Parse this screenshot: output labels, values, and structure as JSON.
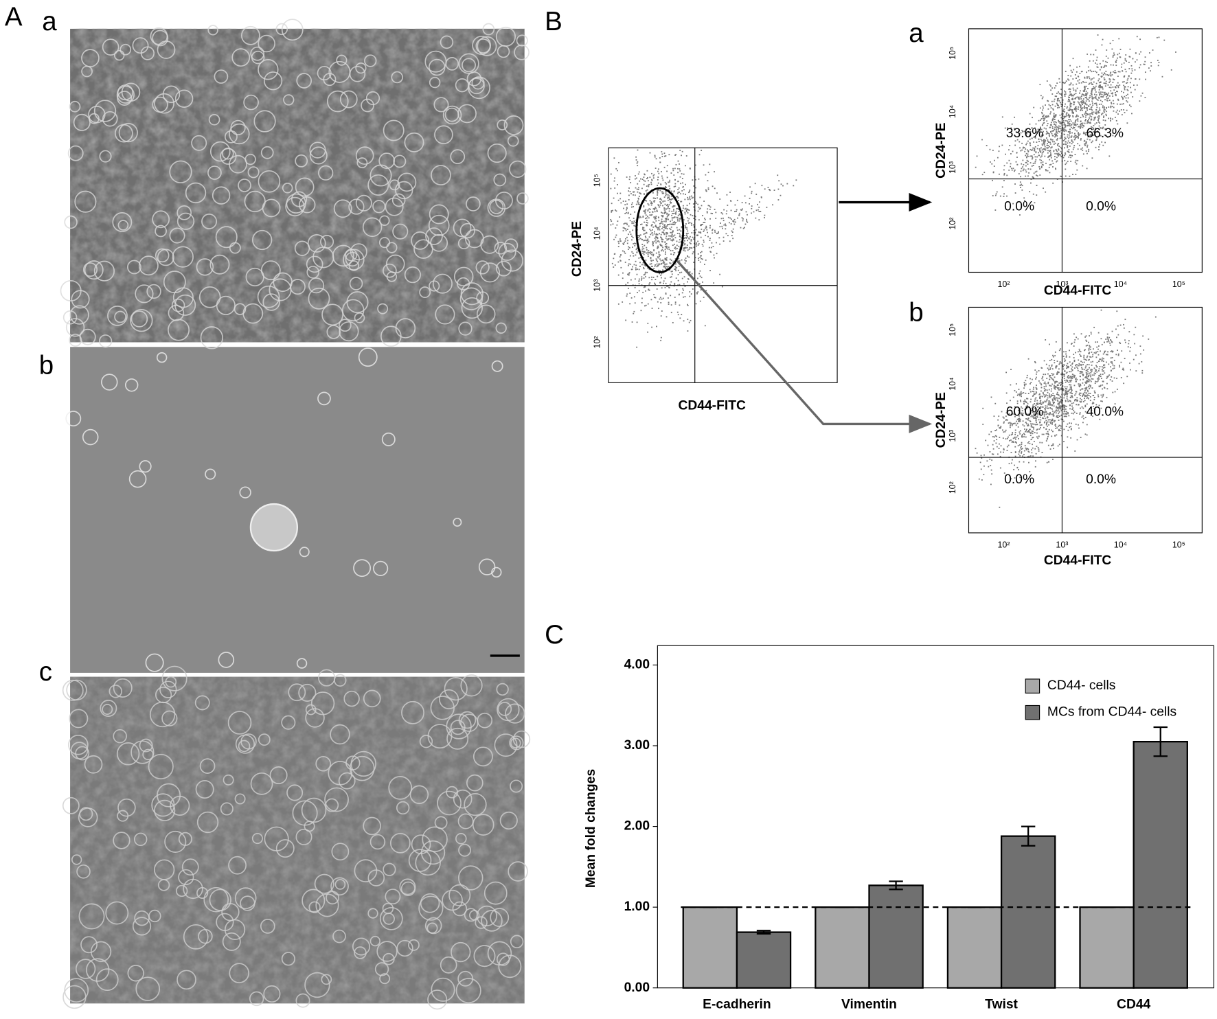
{
  "panel_a": {
    "label": "A",
    "images": [
      {
        "label": "a"
      },
      {
        "label": "b"
      },
      {
        "label": "c"
      }
    ]
  },
  "panel_b": {
    "label": "B",
    "overview": {
      "x_label": "CD44-FITC",
      "y_label": "CD24-PE",
      "yticks": [
        "10⁵",
        "10⁴",
        "10³",
        "10²"
      ]
    },
    "plots": [
      {
        "label": "a",
        "x_label": "CD44-FITC",
        "y_label": "CD24-PE",
        "xticks": [
          "10²",
          "10³",
          "10⁴",
          "10⁵"
        ],
        "yticks": [
          "10⁵",
          "10⁴",
          "10³",
          "10²"
        ],
        "quadrants": [
          "33.6%",
          "66.3%",
          "0.0%",
          "0.0%"
        ]
      },
      {
        "label": "b",
        "x_label": "CD44-FITC",
        "y_label": "CD24-PE",
        "xticks": [
          "10²",
          "10³",
          "10⁴",
          "10⁵"
        ],
        "yticks": [
          "10⁵",
          "10⁴",
          "10³",
          "10²"
        ],
        "quadrants": [
          "60.0%",
          "40.0%",
          "0.0%",
          "0.0%"
        ]
      }
    ]
  },
  "chart_data": {
    "type": "bar",
    "panel_label": "C",
    "y_label": "Mean fold changes",
    "categories": [
      "E-cadherin",
      "Vimentin",
      "Twist",
      "CD44"
    ],
    "series": [
      {
        "name": "CD44- cells",
        "color": "#a8a8a8",
        "values": [
          1.0,
          1.0,
          1.0,
          1.0
        ],
        "errors": [
          0.0,
          0.0,
          0.0,
          0.0
        ]
      },
      {
        "name": "MCs from CD44- cells",
        "color": "#707070",
        "values": [
          0.69,
          1.27,
          1.88,
          3.05
        ],
        "errors": [
          0.02,
          0.05,
          0.12,
          0.18
        ]
      }
    ],
    "ylim": [
      0,
      4.24
    ],
    "yticks": [
      {
        "value": 0,
        "label": "0.00"
      },
      {
        "value": 1,
        "label": "1.00"
      },
      {
        "value": 2,
        "label": "2.00"
      },
      {
        "value": 3,
        "label": "3.00"
      },
      {
        "value": 4,
        "label": "4.00"
      }
    ],
    "reference_line": 1
  }
}
